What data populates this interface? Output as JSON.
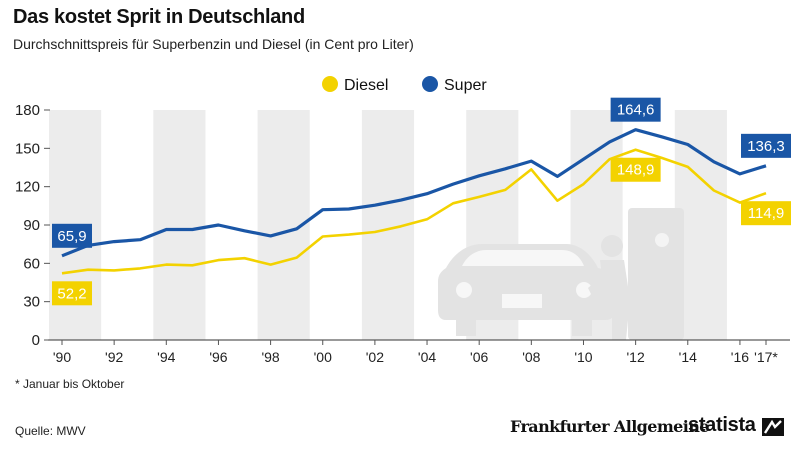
{
  "colors": {
    "diesel": "#f3d200",
    "super": "#1a56a6",
    "band": "#ececec",
    "silhouette": "#e3e3e3"
  },
  "icons": [
    "car-icon",
    "fuel-pump-icon",
    "person-refueling-icon",
    "statista-icon"
  ],
  "chart_data": {
    "type": "line",
    "title": "Das kostet Sprit in Deutschland",
    "subtitle": "Durchschnittspreis für Superbenzin und Diesel (in Cent pro Liter)",
    "xlabel": "",
    "ylabel": "",
    "ylim": [
      0,
      180
    ],
    "yticks": [
      0,
      30,
      60,
      90,
      120,
      150,
      180
    ],
    "x": [
      1990,
      1991,
      1992,
      1993,
      1994,
      1995,
      1996,
      1997,
      1998,
      1999,
      2000,
      2001,
      2002,
      2003,
      2004,
      2005,
      2006,
      2007,
      2008,
      2009,
      2010,
      2011,
      2012,
      2013,
      2014,
      2015,
      2016,
      2017
    ],
    "xticks": [
      {
        "year": 1990,
        "label": "'90"
      },
      {
        "year": 1992,
        "label": "'92"
      },
      {
        "year": 1994,
        "label": "'94"
      },
      {
        "year": 1996,
        "label": "'96"
      },
      {
        "year": 1998,
        "label": "'98"
      },
      {
        "year": 2000,
        "label": "'00"
      },
      {
        "year": 2002,
        "label": "'02"
      },
      {
        "year": 2004,
        "label": "'04"
      },
      {
        "year": 2006,
        "label": "'06"
      },
      {
        "year": 2008,
        "label": "'08"
      },
      {
        "year": 2010,
        "label": "'10"
      },
      {
        "year": 2012,
        "label": "'12"
      },
      {
        "year": 2014,
        "label": "'14"
      },
      {
        "year": 2016,
        "label": "'16"
      },
      {
        "year": 2017,
        "label": "'17*"
      }
    ],
    "legend": {
      "position": "top-center",
      "entries": [
        "Diesel",
        "Super"
      ]
    },
    "grid": false,
    "series": [
      {
        "name": "Diesel",
        "key": "diesel",
        "values": [
          52.2,
          55,
          54.5,
          56,
          59,
          58.5,
          62.5,
          64,
          59,
          64.5,
          81,
          82.5,
          84.5,
          89,
          94.5,
          107,
          112,
          117.5,
          133.5,
          109,
          122,
          141.5,
          148.9,
          142.5,
          135.5,
          117,
          107.5,
          114.9
        ]
      },
      {
        "name": "Super",
        "key": "super",
        "values": [
          65.9,
          74,
          77,
          78.5,
          86.5,
          86.5,
          90,
          85.5,
          81.5,
          87,
          102,
          102.5,
          105.5,
          109.5,
          114.5,
          122,
          128.5,
          134,
          140,
          128,
          141.5,
          155,
          164.6,
          159,
          153,
          139.5,
          130,
          136.3
        ]
      }
    ],
    "annotations": [
      {
        "series": "super",
        "year": 1990,
        "text": "65,9",
        "pos": "above"
      },
      {
        "series": "diesel",
        "year": 1990,
        "text": "52,2",
        "pos": "below"
      },
      {
        "series": "super",
        "year": 2012,
        "text": "164,6",
        "pos": "above"
      },
      {
        "series": "diesel",
        "year": 2012,
        "text": "148,9",
        "pos": "below"
      },
      {
        "series": "super",
        "year": 2017,
        "text": "136,3",
        "pos": "above"
      },
      {
        "series": "diesel",
        "year": 2017,
        "text": "114,9",
        "pos": "below"
      }
    ]
  },
  "footnote": "* Januar bis Oktober",
  "source": "Quelle: MWV",
  "logos": {
    "faz": "Frankfurter Allgemeine",
    "statista": "statista"
  }
}
